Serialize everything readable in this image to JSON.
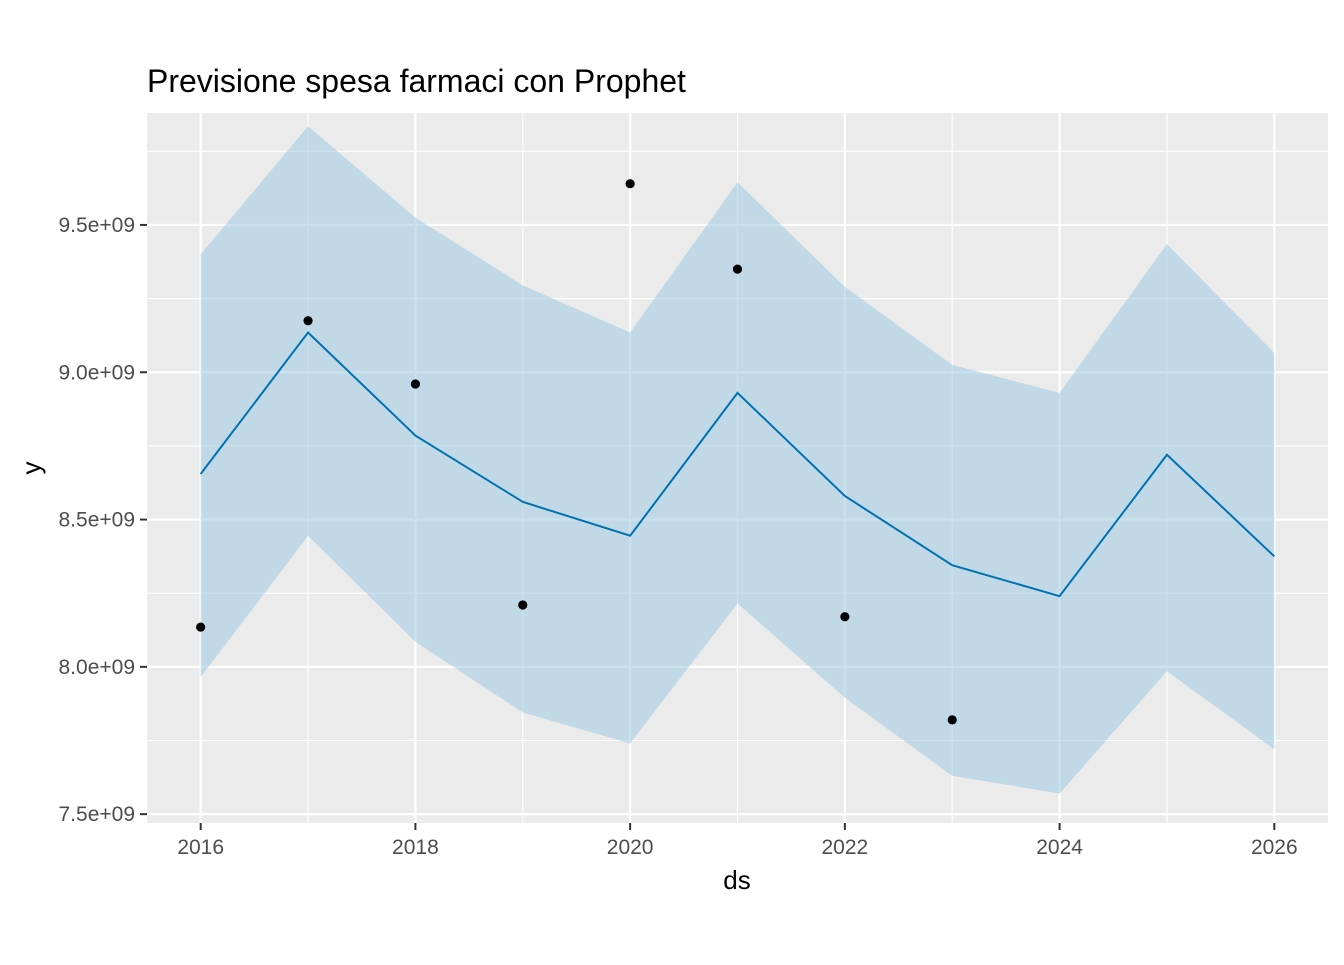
{
  "chart_data": {
    "type": "line",
    "title": "Previsione spesa farmaci con Prophet",
    "xlabel": "ds",
    "ylabel": "y",
    "xlim": [
      2015.5,
      2026.5
    ],
    "ylim": [
      7470000000.0,
      9880000000.0
    ],
    "x_ticks": [
      2016,
      2018,
      2020,
      2022,
      2024,
      2026
    ],
    "x_tick_labels": [
      "2016",
      "2018",
      "2020",
      "2022",
      "2024",
      "2026"
    ],
    "x_minor_ticks": [
      2017,
      2019,
      2021,
      2023,
      2025
    ],
    "y_ticks": [
      7500000000.0,
      8000000000.0,
      8500000000.0,
      9000000000.0,
      9500000000.0
    ],
    "y_tick_labels": [
      "7.5e+09",
      "8.0e+09",
      "8.5e+09",
      "9.0e+09",
      "9.5e+09"
    ],
    "y_minor_ticks": [
      7750000000.0,
      8250000000.0,
      8750000000.0,
      9250000000.0,
      9750000000.0
    ],
    "grid": true,
    "colors": {
      "panel_background": "#ebebeb",
      "grid": "#ffffff",
      "forecast_line": "#0072b2",
      "interval_fill": "#9ecae1",
      "observed_points": "#000000"
    },
    "forecast": {
      "x": [
        2016,
        2017,
        2018,
        2019,
        2020,
        2021,
        2022,
        2023,
        2024,
        2025,
        2026
      ],
      "yhat": [
        8655000000.0,
        9135000000.0,
        8785000000.0,
        8560000000.0,
        8445000000.0,
        8930000000.0,
        8580000000.0,
        8345000000.0,
        8240000000.0,
        8720000000.0,
        8375000000.0
      ],
      "yhat_lower": [
        7965000000.0,
        8445000000.0,
        8085000000.0,
        7845000000.0,
        7740000000.0,
        8215000000.0,
        7895000000.0,
        7630000000.0,
        7570000000.0,
        7985000000.0,
        7720000000.0
      ],
      "yhat_upper": [
        9400000000.0,
        9835000000.0,
        9525000000.0,
        9295000000.0,
        9135000000.0,
        9645000000.0,
        9290000000.0,
        9025000000.0,
        8930000000.0,
        9435000000.0,
        9065000000.0
      ]
    },
    "observed": {
      "x": [
        2016,
        2017,
        2018,
        2019,
        2020,
        2021,
        2022,
        2023
      ],
      "y": [
        8135000000.0,
        9175000000.0,
        8960000000.0,
        8210000000.0,
        9640000000.0,
        9350000000.0,
        8170000000.0,
        7820000000.0
      ]
    }
  }
}
